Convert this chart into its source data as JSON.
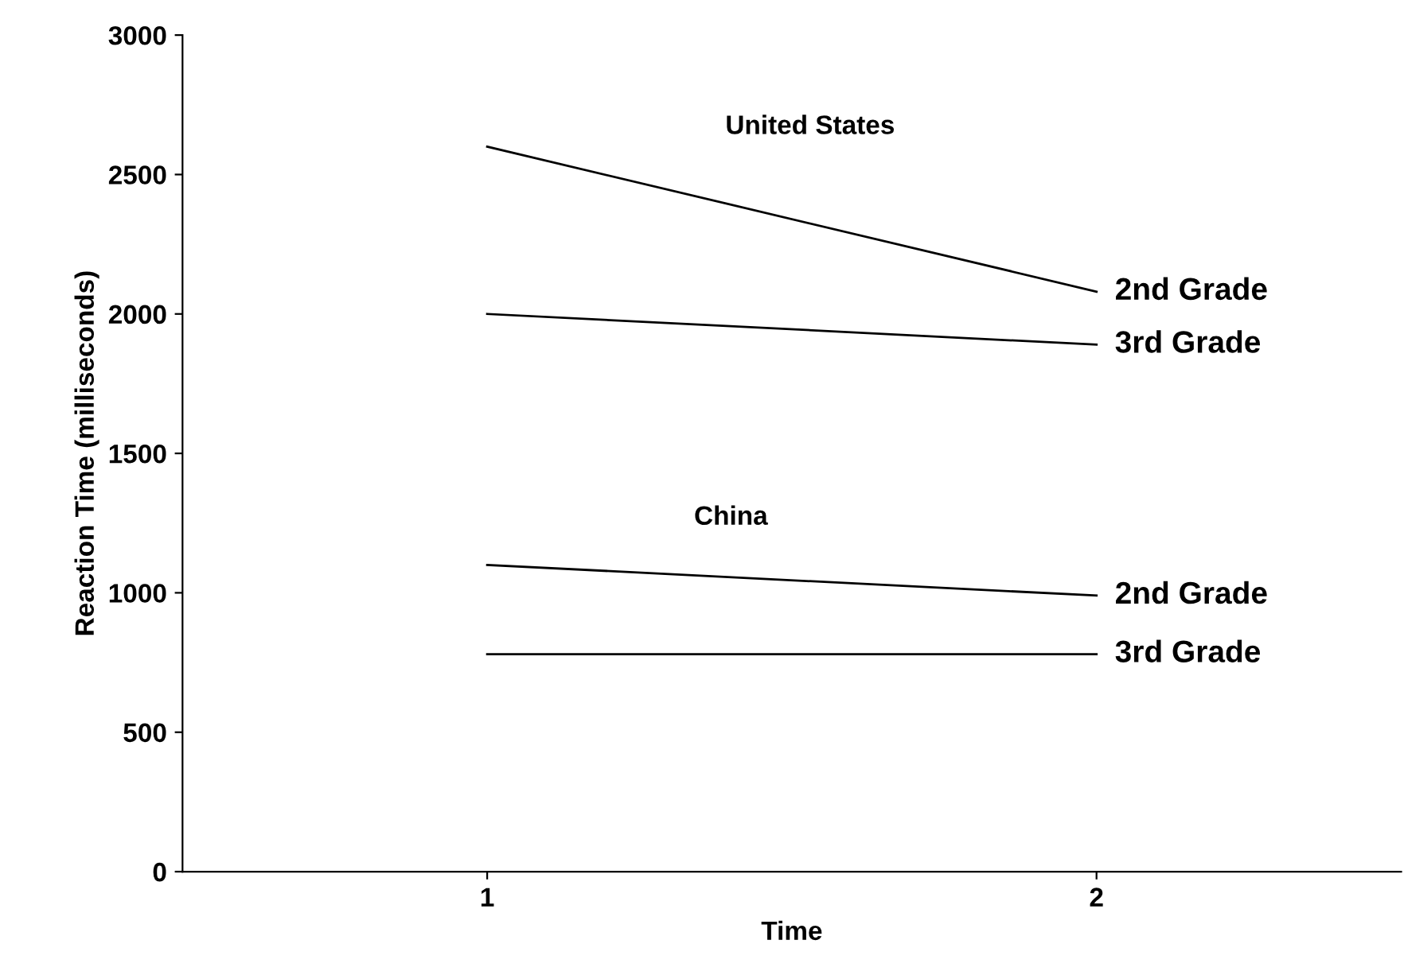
{
  "chart_data": {
    "type": "line",
    "xlabel": "Time",
    "ylabel": "Reaction Time (milliseconds)",
    "x": [
      1,
      2
    ],
    "series": [
      {
        "name": "2nd Grade",
        "color": "#000000",
        "values": [
          2600,
          2080
        ]
      },
      {
        "name": "3rd Grade",
        "color": "#000000",
        "values": [
          2000,
          1890
        ]
      },
      {
        "name": "2nd Grade",
        "color": "#000000",
        "values": [
          1100,
          990
        ]
      },
      {
        "name": "3rd Grade",
        "color": "#000000",
        "values": [
          780,
          780
        ]
      }
    ],
    "annotations": [
      "United States",
      "China"
    ],
    "xlim": [
      0.5,
      2.5
    ],
    "xticks": [
      1,
      2
    ],
    "ylim": [
      0,
      3000
    ],
    "yticks": [
      0,
      500,
      1000,
      1500,
      2000,
      2500,
      3000
    ],
    "grid": false,
    "legend": false,
    "marker": "none",
    "line_style": "solid"
  }
}
